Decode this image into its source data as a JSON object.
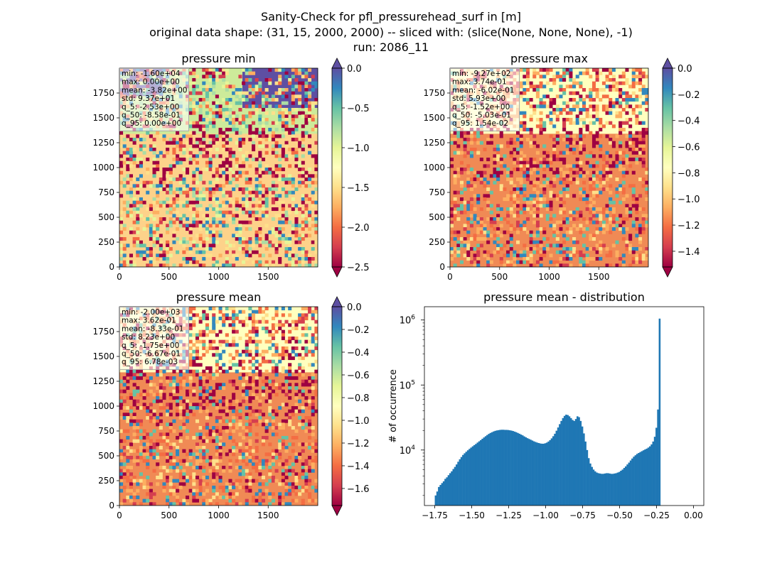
{
  "figure": {
    "title_lines": [
      "Sanity-Check for pfl_pressurehead_surf in [m]",
      "original data shape: (31, 15, 2000, 2000) -- sliced with: (slice(None, None, None), -1)",
      "run: 2086_11"
    ]
  },
  "colors": {
    "spectral": [
      "#9e0142",
      "#d53e4f",
      "#f46d43",
      "#fdae61",
      "#fee08b",
      "#ffffbf",
      "#e6f598",
      "#abdda4",
      "#66c2a5",
      "#3288bd",
      "#5e4fa2"
    ],
    "hist_bar": "#1f77b4"
  },
  "chart_data": [
    {
      "type": "heatmap",
      "title": "pressure min",
      "x_ticks": [
        "0",
        "500",
        "1000",
        "1500"
      ],
      "y_ticks": [
        "0",
        "250",
        "500",
        "750",
        "1000",
        "1250",
        "1500",
        "1750"
      ],
      "xlim": [
        0,
        2000
      ],
      "ylim": [
        0,
        2000
      ],
      "colorbar": {
        "min": -2.5,
        "max": 0.0,
        "ticks": [
          "0.0",
          "−0.5",
          "−1.0",
          "−1.5",
          "−2.0",
          "−2.5"
        ],
        "extend": "both",
        "cmap": "Spectral"
      },
      "stats": [
        "min: -1.60e+04",
        "max: 0.00e+00",
        "mean: -3.82e+00",
        "std: 9.37e+01",
        "q_5: -2.53e+00",
        "q_50: -8.58e-01",
        "q_95: 0.00e+00"
      ]
    },
    {
      "type": "heatmap",
      "title": "pressure max",
      "x_ticks": [
        "0",
        "500",
        "1000",
        "1500"
      ],
      "y_ticks": [
        "0",
        "250",
        "500",
        "750",
        "1000",
        "1250",
        "1500",
        "1750"
      ],
      "xlim": [
        0,
        2000
      ],
      "ylim": [
        0,
        2000
      ],
      "colorbar": {
        "min": -1.52,
        "max": 0.0,
        "ticks": [
          "0.0",
          "−0.2",
          "−0.4",
          "−0.6",
          "−0.8",
          "−1.0",
          "−1.2",
          "−1.4"
        ],
        "extend": "both",
        "cmap": "Spectral"
      },
      "stats": [
        "min: -9.27e+02",
        "max: 3.74e-01",
        "mean: -6.02e-01",
        "std: 5.93e+00",
        "q_5: -1.52e+00",
        "q_50: -5.03e-01",
        "q_95: 1.54e-02"
      ]
    },
    {
      "type": "heatmap",
      "title": "pressure mean",
      "x_ticks": [
        "0",
        "500",
        "1000",
        "1500"
      ],
      "y_ticks": [
        "0",
        "250",
        "500",
        "750",
        "1000",
        "1250",
        "1500",
        "1750"
      ],
      "xlim": [
        0,
        2000
      ],
      "ylim": [
        0,
        2000
      ],
      "colorbar": {
        "min": -1.75,
        "max": 0.0,
        "ticks": [
          "0.0",
          "−0.2",
          "−0.4",
          "−0.6",
          "−0.8",
          "−1.0",
          "−1.2",
          "−1.4",
          "−1.6"
        ],
        "extend": "both",
        "cmap": "Spectral"
      },
      "stats": [
        "min: -2.00e+03",
        "max: 3.62e-01",
        "mean: -8.33e-01",
        "std: 8.23e+00",
        "q_5: -1.75e+00",
        "q_50: -6.67e-01",
        "q_95: 6.78e-03"
      ]
    },
    {
      "type": "bar",
      "title": "pressure mean - distribution",
      "ylabel": "# of occurrence",
      "yscale": "log",
      "xlim": [
        -1.82,
        0.07
      ],
      "ylim": [
        1400,
        1600000
      ],
      "x_ticks": [
        "−1.75",
        "−1.50",
        "−1.25",
        "−1.00",
        "−0.75",
        "−0.50",
        "−0.25",
        "0.00"
      ],
      "y_ticks": [
        {
          "base": "10",
          "exp": "4"
        },
        {
          "base": "10",
          "exp": "5"
        },
        {
          "base": "10",
          "exp": "6"
        }
      ],
      "bins": {
        "start": -1.75,
        "width": 0.0109
      },
      "counts": [
        2000,
        2300,
        2700,
        2900,
        3100,
        3300,
        3600,
        3800,
        4100,
        4400,
        4700,
        5100,
        5500,
        6000,
        6600,
        7200,
        7800,
        8400,
        8900,
        9400,
        9900,
        10400,
        10900,
        11400,
        11900,
        12400,
        13000,
        13600,
        14200,
        14900,
        15600,
        16300,
        17000,
        17700,
        18300,
        18800,
        19300,
        19700,
        20000,
        20200,
        20400,
        20500,
        20500,
        20400,
        20400,
        20300,
        20100,
        19900,
        19600,
        19200,
        18800,
        18300,
        17800,
        17300,
        16800,
        16200,
        15700,
        15200,
        14800,
        14400,
        14000,
        13600,
        13300,
        13000,
        12800,
        12600,
        12500,
        12500,
        12700,
        13000,
        13500,
        14200,
        15100,
        16300,
        17800,
        19800,
        22200,
        25000,
        28000,
        31000,
        33500,
        35000,
        34500,
        33000,
        31000,
        29000,
        28000,
        30000,
        33000,
        32000,
        28000,
        23000,
        18000,
        13500,
        10000,
        7500,
        6200,
        5500,
        5000,
        4700,
        4500,
        4400,
        4350,
        4300,
        4300,
        4350,
        4400,
        4400,
        4350,
        4300,
        4300,
        4350,
        4400,
        4500,
        4600,
        4800,
        5000,
        5300,
        5600,
        6000,
        6400,
        6900,
        7400,
        7900,
        8300,
        8700,
        9000,
        9300,
        9600,
        9900,
        10200,
        10500,
        10900,
        11400,
        12200,
        13500,
        16000,
        22000,
        42000,
        1050000
      ]
    }
  ]
}
